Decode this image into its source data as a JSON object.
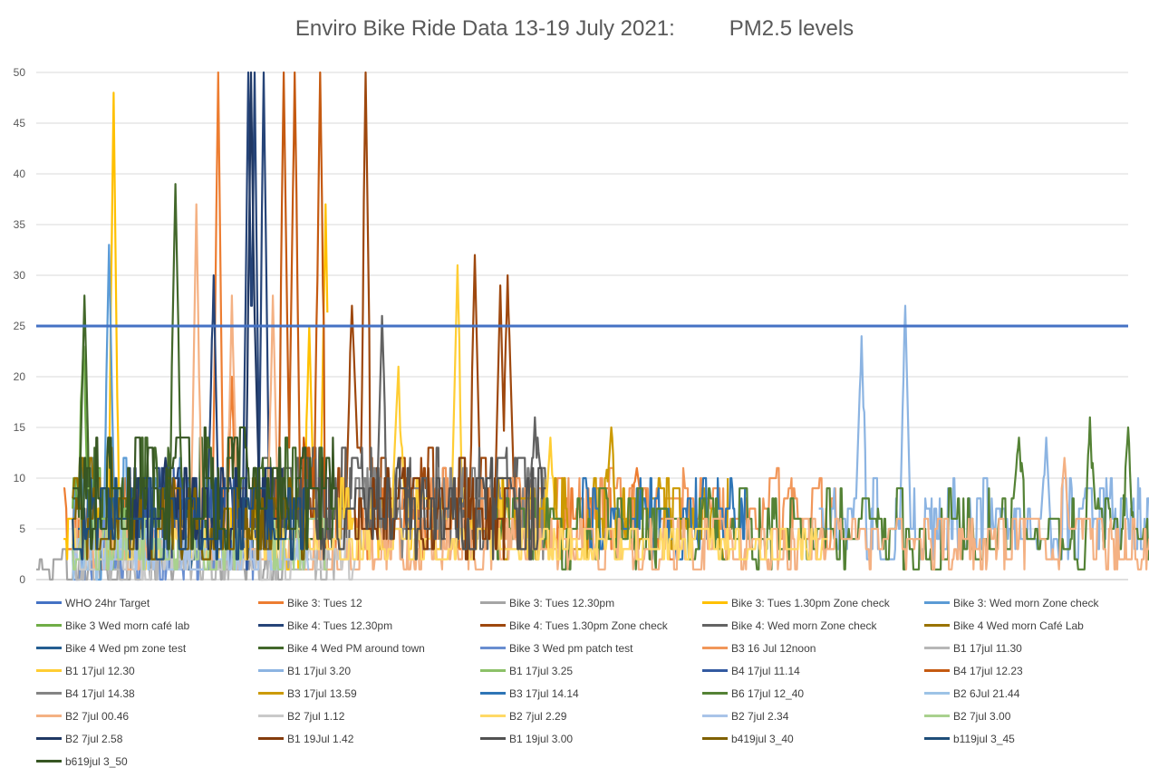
{
  "chart_data": {
    "type": "line",
    "title": "Enviro Bike Ride Data 13-19 July 2021:         PM2.5 levels",
    "xlabel": "",
    "ylabel": "",
    "ylim": [
      0,
      50
    ],
    "yticks": [
      0,
      5,
      10,
      15,
      20,
      25,
      30,
      35,
      40,
      45,
      50
    ],
    "x_count": 1200,
    "grid": "horizontal",
    "legend_position": "bottom",
    "target": {
      "name": "WHO 24hr Target",
      "value": 25,
      "color": "#4472c4"
    },
    "series": [
      {
        "name": "Bike 3: Tues 12",
        "color": "#ed7d31",
        "start": 30,
        "end": 700,
        "base": 6,
        "amp": 4,
        "peaks": [
          [
            200,
            50
          ],
          [
            215,
            20
          ],
          [
            660,
            11
          ]
        ]
      },
      {
        "name": "Bike 3: Tues 12.30pm",
        "color": "#a5a5a5",
        "start": 0,
        "end": 300,
        "base": 1.5,
        "amp": 1.5,
        "peaks": []
      },
      {
        "name": "Bike 3: Tues 1.30pm Zone check",
        "color": "#ffc000",
        "start": 30,
        "end": 320,
        "base": 4,
        "amp": 3,
        "peaks": [
          [
            85,
            48
          ],
          [
            300,
            25
          ],
          [
            318,
            37
          ]
        ]
      },
      {
        "name": "Bike 3: Wed morn Zone check",
        "color": "#5b9bd5",
        "start": 40,
        "end": 200,
        "base": 6,
        "amp": 6,
        "peaks": [
          [
            80,
            33
          ]
        ]
      },
      {
        "name": "Bike 3 Wed morn café lab",
        "color": "#70ad47",
        "start": 40,
        "end": 80,
        "base": 7,
        "amp": 5,
        "peaks": [
          [
            52,
            23
          ]
        ]
      },
      {
        "name": "Bike 4: Tues 12.30pm",
        "color": "#264478",
        "start": 100,
        "end": 270,
        "base": 7,
        "amp": 5,
        "peaks": [
          [
            195,
            30
          ],
          [
            233,
            50
          ],
          [
            240,
            50
          ],
          [
            250,
            50
          ]
        ]
      },
      {
        "name": "Bike 4: Tues 1.30pm Zone check",
        "color": "#9e480e",
        "start": 300,
        "end": 530,
        "base": 8,
        "amp": 5,
        "peaks": [
          [
            362,
            50
          ],
          [
            347,
            27
          ],
          [
            482,
            32
          ],
          [
            510,
            29
          ],
          [
            518,
            30
          ]
        ]
      },
      {
        "name": "Bike 4: Wed morn Zone check",
        "color": "#636363",
        "start": 250,
        "end": 560,
        "base": 8,
        "amp": 5,
        "peaks": [
          [
            380,
            26
          ],
          [
            548,
            16
          ]
        ]
      },
      {
        "name": "Bike 4 Wed morn Café Lab",
        "color": "#997300",
        "start": 40,
        "end": 120,
        "base": 8,
        "amp": 5,
        "peaks": []
      },
      {
        "name": "Bike 4 Wed pm zone test",
        "color": "#255e91",
        "start": 40,
        "end": 200,
        "base": 6,
        "amp": 5,
        "peaks": []
      },
      {
        "name": "Bike 4 Wed PM around town",
        "color": "#43682b",
        "start": 40,
        "end": 330,
        "base": 8,
        "amp": 6,
        "peaks": [
          [
            53,
            28
          ],
          [
            153,
            39
          ]
        ]
      },
      {
        "name": "Bike 3 Wed pm patch test",
        "color": "#698ed0",
        "start": 40,
        "end": 240,
        "base": 3,
        "amp": 3,
        "peaks": []
      },
      {
        "name": "B3 16 Jul 12noon",
        "color": "#f1975a",
        "start": 400,
        "end": 880,
        "base": 7,
        "amp": 4,
        "peaks": []
      },
      {
        "name": "B1 17jul 11.30",
        "color": "#b7b7b7",
        "start": 40,
        "end": 330,
        "base": 1.5,
        "amp": 2,
        "peaks": []
      },
      {
        "name": "B1 17jul 12.30",
        "color": "#ffcd33",
        "start": 330,
        "end": 570,
        "base": 6,
        "amp": 4,
        "peaks": [
          [
            398,
            21
          ],
          [
            463,
            31
          ],
          [
            565,
            14
          ]
        ]
      },
      {
        "name": "B1 17jul 3.20",
        "color": "#8cb4e2",
        "start": 860,
        "end": 1245,
        "base": 6,
        "amp": 4,
        "peaks": [
          [
            907,
            24
          ],
          [
            955,
            27
          ],
          [
            1110,
            14
          ]
        ]
      },
      {
        "name": "B1 17jul 3.25",
        "color": "#8cc168",
        "start": 40,
        "end": 100,
        "base": 5,
        "amp": 4,
        "peaks": []
      },
      {
        "name": "B4 17jul 11.14",
        "color": "#335aa1",
        "start": 100,
        "end": 260,
        "base": 6,
        "amp": 5,
        "peaks": [
          [
            262,
            15
          ]
        ]
      },
      {
        "name": "B4 17jul 12.23",
        "color": "#c55a11",
        "start": 250,
        "end": 320,
        "base": 8,
        "amp": 6,
        "peaks": [
          [
            272,
            50
          ],
          [
            284,
            50
          ],
          [
            312,
            50
          ]
        ]
      },
      {
        "name": "B4 17jul 14.38",
        "color": "#848484",
        "start": 350,
        "end": 560,
        "base": 7,
        "amp": 5,
        "peaks": []
      },
      {
        "name": "B3 17jul 13.59",
        "color": "#cc9a00",
        "start": 500,
        "end": 760,
        "base": 6,
        "amp": 4,
        "peaks": [
          [
            632,
            15
          ]
        ]
      },
      {
        "name": "B3 17jul 14.14",
        "color": "#2e75b6",
        "start": 600,
        "end": 780,
        "base": 6,
        "amp": 4,
        "peaks": []
      },
      {
        "name": "B6 17jul 12_40",
        "color": "#548235",
        "start": 500,
        "end": 1245,
        "base": 5,
        "amp": 4,
        "peaks": [
          [
            1080,
            14
          ],
          [
            1158,
            16
          ],
          [
            1200,
            15
          ]
        ]
      },
      {
        "name": "B2 6Jul 21.44",
        "color": "#9dc3e6",
        "start": 40,
        "end": 150,
        "base": 3,
        "amp": 3,
        "peaks": []
      },
      {
        "name": "B2 7jul 00.46",
        "color": "#f4b183",
        "start": 40,
        "end": 1245,
        "base": 3.5,
        "amp": 3,
        "peaks": [
          [
            176,
            37
          ],
          [
            215,
            28
          ],
          [
            260,
            28
          ],
          [
            1130,
            12
          ]
        ]
      },
      {
        "name": "B2 7jul 1.12",
        "color": "#c9c9c9",
        "start": 40,
        "end": 350,
        "base": 2,
        "amp": 2,
        "peaks": []
      },
      {
        "name": "B2 7jul 2.29",
        "color": "#ffd966",
        "start": 40,
        "end": 870,
        "base": 3.5,
        "amp": 2,
        "peaks": []
      },
      {
        "name": "B2 7jul 2.34",
        "color": "#a9c4e8",
        "start": 40,
        "end": 300,
        "base": 2.5,
        "amp": 2,
        "peaks": []
      },
      {
        "name": "B2 7jul 3.00",
        "color": "#a9d18e",
        "start": 40,
        "end": 320,
        "base": 3.5,
        "amp": 3,
        "peaks": []
      },
      {
        "name": "B2 7jul 2.58",
        "color": "#203864",
        "start": 100,
        "end": 270,
        "base": 7,
        "amp": 5,
        "peaks": [
          [
            236,
            50
          ],
          [
            238,
            33
          ]
        ]
      },
      {
        "name": "B1 19Jul 1.42",
        "color": "#843c0c",
        "start": 350,
        "end": 520,
        "base": 7,
        "amp": 5,
        "peaks": []
      },
      {
        "name": "B1 19jul 3.00",
        "color": "#525252",
        "start": 250,
        "end": 560,
        "base": 7,
        "amp": 5,
        "peaks": []
      },
      {
        "name": "b419jul 3_40",
        "color": "#7f6000",
        "start": 40,
        "end": 300,
        "base": 6,
        "amp": 4,
        "peaks": []
      },
      {
        "name": "b119jul 3_45",
        "color": "#1f4e79",
        "start": 40,
        "end": 300,
        "base": 6,
        "amp": 4,
        "peaks": []
      },
      {
        "name": "b619jul 3_50",
        "color": "#375623",
        "start": 40,
        "end": 330,
        "base": 9,
        "amp": 6,
        "peaks": []
      }
    ]
  }
}
